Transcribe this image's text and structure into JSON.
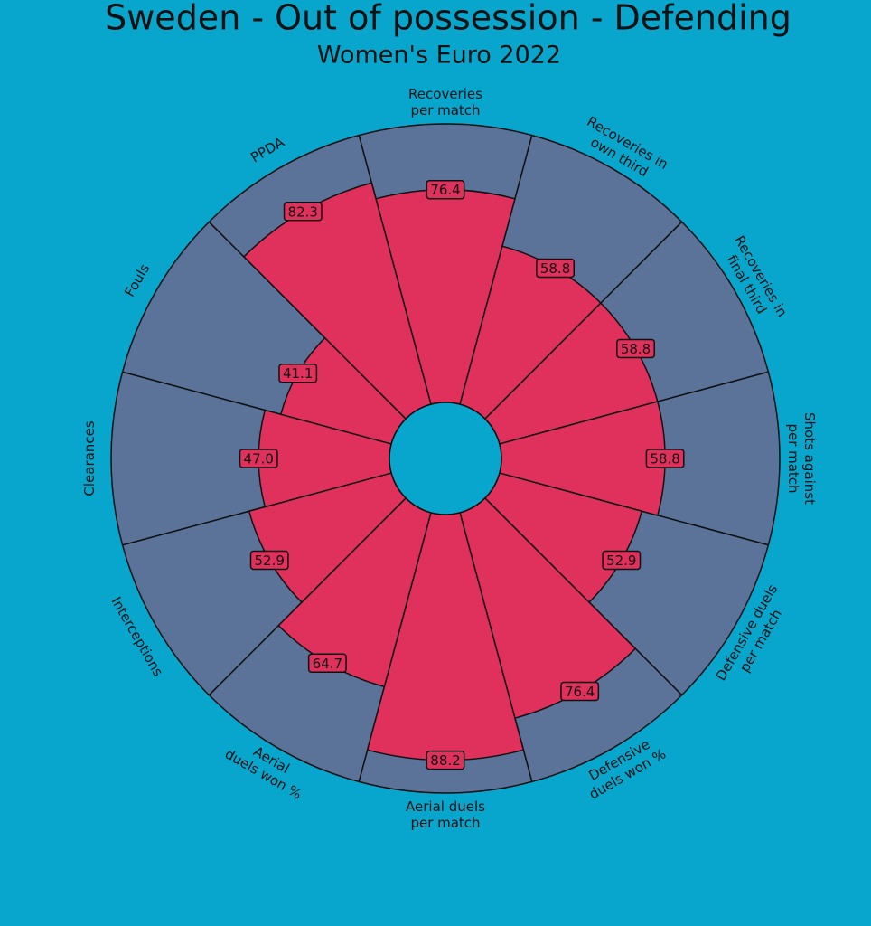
{
  "chart_data": {
    "type": "pizza",
    "title": "Sweden - Out of possession - Defending",
    "subtitle": "Women's Euro 2022",
    "categories": [
      "Recoveries\nper match",
      "Recoveries in\nown third",
      "Recoveries in\nfinal third",
      "Shots against\nper match",
      "Defensive duels\nper match",
      "Defensive\nduels won %",
      "Aerial duels\nper match",
      "Aerial\nduels won %",
      "Interceptions",
      "Clearances",
      "Fouls",
      "PPDA"
    ],
    "values": [
      76.4,
      58.8,
      58.8,
      58.8,
      52.9,
      76.4,
      88.2,
      64.7,
      52.9,
      47.0,
      41.1,
      82.3
    ],
    "value_labels": [
      "76.4",
      "58.8",
      "58.8",
      "58.8",
      "52.9",
      "76.4",
      "88.2",
      "64.7",
      "52.9",
      "47.0",
      "41.1",
      "82.3"
    ],
    "ylim": [
      0,
      100
    ],
    "color": "#e0305c",
    "slice_background": "#5b7299",
    "background": "#08a5cd"
  }
}
